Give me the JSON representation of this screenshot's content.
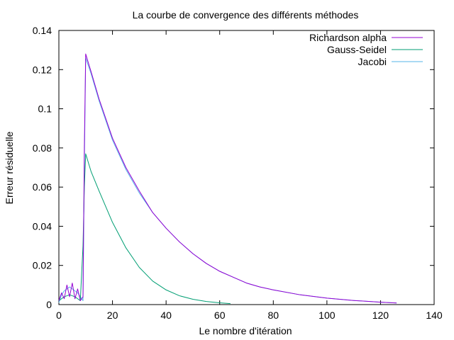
{
  "chart_data": {
    "type": "line",
    "title": "La courbe de convergence des différents méthodes",
    "xlabel": "Le nombre d'itération",
    "ylabel": "Erreur résiduelle",
    "xlim": [
      0,
      140
    ],
    "ylim": [
      0,
      0.14
    ],
    "x_ticks": [
      "0",
      "20",
      "40",
      "60",
      "80",
      "100",
      "120",
      "140"
    ],
    "y_ticks": [
      "0",
      "0.02",
      "0.04",
      "0.06",
      "0.08",
      "0.1",
      "0.12",
      "0.14"
    ],
    "grid": false,
    "legend_position": "top-right",
    "series": [
      {
        "name": "Richardson alpha",
        "color": "#9400d3",
        "x": [
          0,
          1,
          2,
          3,
          4,
          5,
          6,
          7,
          8,
          9,
          9.5,
          10,
          12,
          15,
          20,
          25,
          30,
          35,
          40,
          45,
          50,
          55,
          60,
          65,
          70,
          75,
          80,
          90,
          100,
          110,
          120,
          126
        ],
        "y": [
          0.002,
          0.006,
          0.003,
          0.01,
          0.004,
          0.011,
          0.003,
          0.008,
          0.002,
          0.004,
          0.08,
          0.128,
          0.119,
          0.105,
          0.085,
          0.07,
          0.058,
          0.047,
          0.039,
          0.032,
          0.026,
          0.021,
          0.017,
          0.014,
          0.011,
          0.009,
          0.0075,
          0.005,
          0.0033,
          0.0021,
          0.0012,
          0.0008
        ]
      },
      {
        "name": "Gauss-Seidel",
        "color": "#009e73",
        "x": [
          0,
          2,
          4,
          6,
          8,
          9,
          9.5,
          10,
          12,
          15,
          20,
          25,
          30,
          35,
          40,
          45,
          50,
          55,
          60,
          64
        ],
        "y": [
          0.002,
          0.004,
          0.005,
          0.004,
          0.002,
          0.03,
          0.06,
          0.077,
          0.068,
          0.058,
          0.042,
          0.029,
          0.019,
          0.012,
          0.0075,
          0.0045,
          0.0027,
          0.0016,
          0.0009,
          0.0005
        ]
      },
      {
        "name": "Jacobi",
        "color": "#56b4e9",
        "x": [
          0,
          1,
          2,
          3,
          4,
          5,
          6,
          7,
          8,
          9,
          9.5,
          10,
          12,
          15,
          20,
          25,
          30,
          35,
          40,
          45,
          50,
          55,
          60,
          65,
          70,
          75,
          80,
          90,
          100,
          110,
          120,
          126
        ],
        "y": [
          0.001,
          0.005,
          0.007,
          0.008,
          0.009,
          0.008,
          0.007,
          0.006,
          0.004,
          0.002,
          0.07,
          0.126,
          0.118,
          0.104,
          0.084,
          0.069,
          0.057,
          0.047,
          0.039,
          0.032,
          0.026,
          0.021,
          0.017,
          0.014,
          0.011,
          0.009,
          0.0075,
          0.005,
          0.0033,
          0.0021,
          0.0012,
          0.0008
        ]
      }
    ]
  }
}
